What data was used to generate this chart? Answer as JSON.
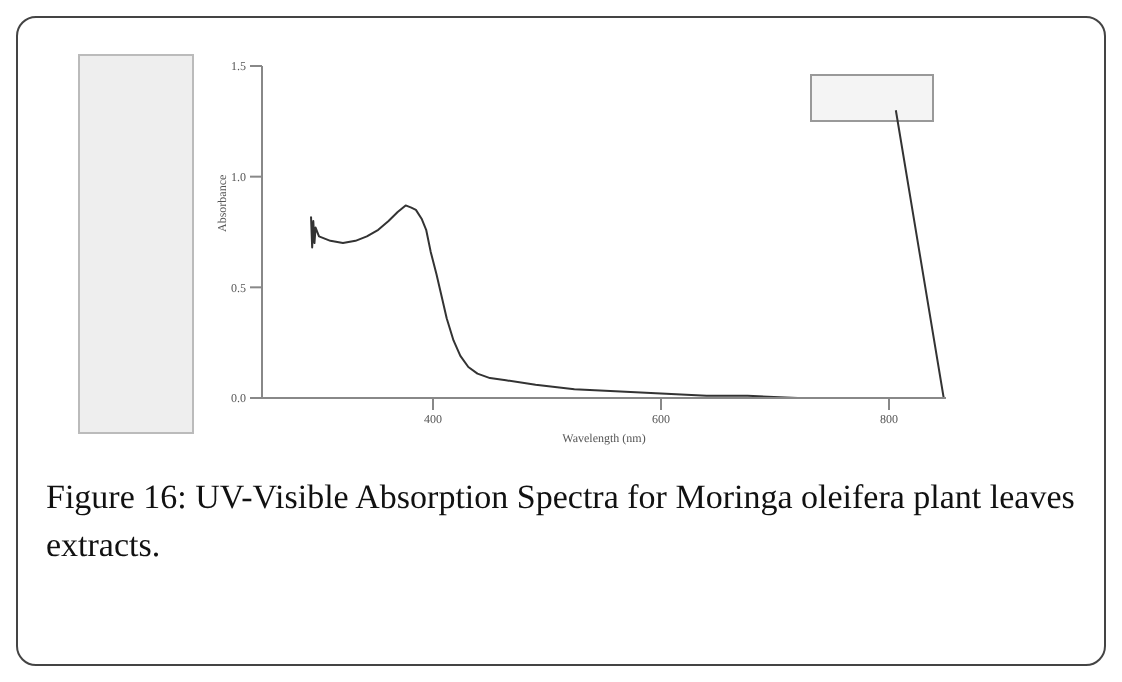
{
  "chart_data": {
    "type": "line",
    "xlabel": "Wavelength (nm)",
    "ylabel": "Absorbance",
    "annotations": [
      "Figure 16: UV-Visible Absorption Spectra for Moringa oleifera plant leaves extracts."
    ],
    "series": [
      {
        "color": "#333333",
        "x": [
          293,
          294,
          295,
          296,
          297,
          300,
          310,
          321,
          332,
          342,
          352,
          361,
          369,
          376,
          381,
          385,
          390,
          394,
          398,
          403,
          408,
          412,
          418,
          424,
          431,
          439,
          450,
          464,
          490,
          524,
          560,
          600,
          640,
          676,
          720,
          760,
          797,
          848,
          806
        ],
        "values": [
          0.82,
          0.68,
          0.8,
          0.7,
          0.77,
          0.73,
          0.71,
          0.7,
          0.71,
          0.73,
          0.76,
          0.8,
          0.84,
          0.87,
          0.86,
          0.85,
          0.81,
          0.76,
          0.66,
          0.56,
          0.45,
          0.36,
          0.26,
          0.19,
          0.14,
          0.11,
          0.09,
          0.08,
          0.06,
          0.04,
          0.03,
          0.02,
          0.01,
          0.01,
          0.0,
          0.0,
          0.0,
          0.0,
          1.3
        ]
      }
    ],
    "xlim": [
      250,
      850
    ],
    "xticks": [
      400,
      600,
      800
    ],
    "ylim": [
      0,
      1.5
    ],
    "yticks": [
      {
        "value": 0,
        "label": "0.0"
      },
      {
        "value": 0.5,
        "label": "0.5"
      },
      {
        "value": 1,
        "label": "1.0"
      },
      {
        "value": 1.5,
        "label": "1.5"
      }
    ],
    "marker": "none",
    "line_style": "solid",
    "grid": false,
    "legend": false
  }
}
